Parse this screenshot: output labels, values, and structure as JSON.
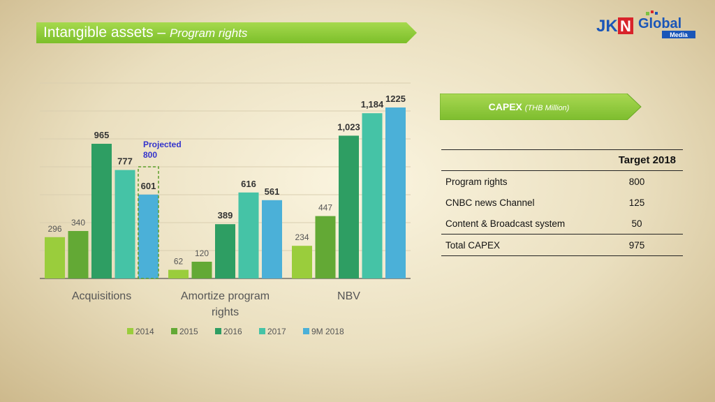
{
  "header": {
    "title_main": "Intangible assets – ",
    "title_sub": "Program rights"
  },
  "logo": {
    "text_left": "JKN",
    "text_right": "Global",
    "text_small": "Media",
    "colors": {
      "blue": "#1a56b8",
      "red": "#d8232a",
      "green": "#7cc242"
    }
  },
  "capex": {
    "title": "CAPEX",
    "unit": "(THB Million)",
    "column_header": "Target 2018",
    "rows": [
      {
        "label": "Program rights",
        "value": "800"
      },
      {
        "label": "CNBC news Channel",
        "value": "125"
      },
      {
        "label": "Content & Broadcast system",
        "value": "50"
      }
    ],
    "total": {
      "label": "Total CAPEX",
      "value": "975"
    }
  },
  "chart_data": {
    "type": "bar",
    "categories": [
      [
        "Acquisitions"
      ],
      [
        "Amortize program",
        "rights"
      ],
      [
        "NBV"
      ]
    ],
    "series": [
      {
        "name": "2014",
        "values": [
          296,
          62,
          234
        ],
        "labels": [
          "296",
          "62",
          "234"
        ],
        "color": "#9acd3c",
        "bold": [
          false,
          false,
          false
        ]
      },
      {
        "name": "2015",
        "values": [
          340,
          120,
          447
        ],
        "labels": [
          "340",
          "120",
          "447"
        ],
        "color": "#63a935",
        "bold": [
          false,
          false,
          false
        ]
      },
      {
        "name": "2016",
        "values": [
          965,
          389,
          1023
        ],
        "labels": [
          "965",
          "389",
          "1,023"
        ],
        "color": "#2e9e63",
        "bold": [
          true,
          true,
          true
        ]
      },
      {
        "name": "2017",
        "values": [
          777,
          616,
          1184
        ],
        "labels": [
          "777",
          "616",
          "1,184"
        ],
        "color": "#45c3a6",
        "bold": [
          true,
          true,
          true
        ]
      },
      {
        "name": "9M 2018",
        "values": [
          601,
          561,
          1225
        ],
        "labels": [
          "601",
          "561",
          "1225"
        ],
        "color": "#4bb0d8",
        "bold": [
          true,
          true,
          true
        ]
      }
    ],
    "annotation": {
      "line1": "Projected",
      "line2": "800",
      "value": 800,
      "color": "#3333cc"
    },
    "ylim": [
      0,
      1400
    ],
    "grid": true,
    "legend": "bottom"
  }
}
